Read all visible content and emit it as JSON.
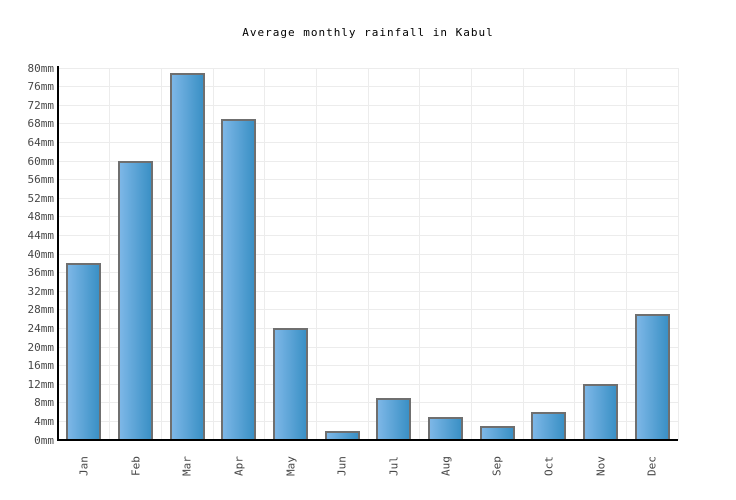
{
  "title": "Average monthly rainfall in Kabul",
  "chart_data": {
    "type": "bar",
    "title": "Average monthly rainfall in Kabul",
    "categories": [
      "Jan",
      "Feb",
      "Mar",
      "Apr",
      "May",
      "Jun",
      "Jul",
      "Aug",
      "Sep",
      "Oct",
      "Nov",
      "Dec"
    ],
    "values": [
      38,
      60,
      79,
      69,
      24,
      2,
      9,
      5,
      3,
      6,
      12,
      27
    ],
    "unit": "mm",
    "xlabel": "",
    "ylabel": "",
    "ylim": [
      0,
      80
    ],
    "ytick_step": 4,
    "ytick_labels": [
      "0mm",
      "4mm",
      "8mm",
      "12mm",
      "16mm",
      "20mm",
      "24mm",
      "28mm",
      "32mm",
      "36mm",
      "40mm",
      "44mm",
      "48mm",
      "52mm",
      "56mm",
      "60mm",
      "64mm",
      "68mm",
      "72mm",
      "76mm",
      "80mm"
    ],
    "grid": true,
    "legend": false
  },
  "colors": {
    "bar_gradient_left": "#7db7e7",
    "bar_gradient_right": "#3a90c5",
    "bar_border": "#6f6f6f",
    "gridline": "#ececec",
    "axis": "#000000",
    "title_text": "#000000",
    "tick_text": "#474747"
  }
}
